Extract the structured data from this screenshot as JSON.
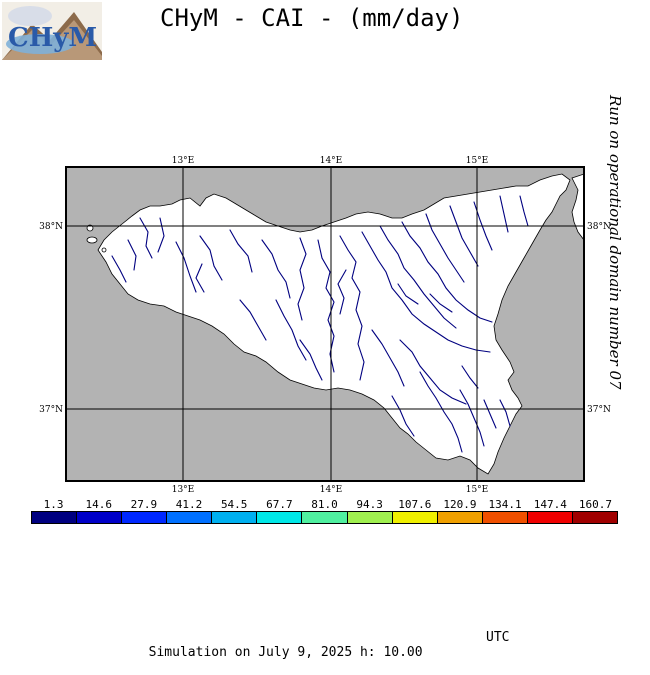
{
  "header": {
    "title": "CHyM - CAI - (mm/day)",
    "logo_text": "CHyM",
    "side_text": "Run on operational domain number 07"
  },
  "map": {
    "lon_labels_top": [
      "13°E",
      "14°E",
      "15°E"
    ],
    "lon_labels_bottom": [
      "13°E",
      "14°E",
      "15°E"
    ],
    "lat_labels_left": [
      "38°N",
      "37°N"
    ],
    "lat_labels_right": [
      "38°N",
      "37°N"
    ],
    "colors": {
      "sea": "#b3b3b3",
      "land": "#ffffff",
      "rivers": "#000080",
      "grid": "#000000"
    }
  },
  "legend": {
    "labels": [
      "1.3",
      "14.6",
      "27.9",
      "41.2",
      "54.5",
      "67.7",
      "81.0",
      "94.3",
      "107.6",
      "120.9",
      "134.1",
      "147.4",
      "160.7"
    ],
    "colors": [
      "#000080",
      "#0000c8",
      "#0028ff",
      "#0070ff",
      "#00b0f0",
      "#00e8e8",
      "#50f0a0",
      "#a0f050",
      "#f0f000",
      "#f0a000",
      "#f05000",
      "#f00000",
      "#a00000"
    ]
  },
  "footer": {
    "simulation": "Simulation on July 9, 2025 h: 10.00",
    "timezone": "UTC"
  }
}
